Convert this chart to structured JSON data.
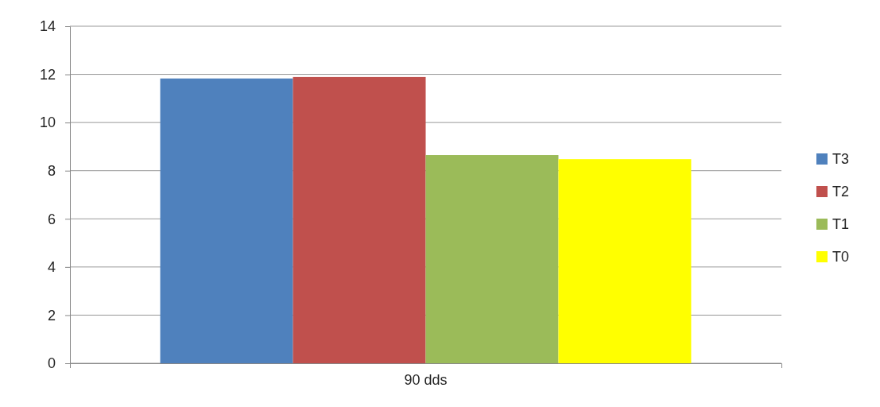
{
  "chart_data": {
    "type": "bar",
    "categories": [
      "90 dds"
    ],
    "series": [
      {
        "name": "T3",
        "color": "#4f81bd",
        "values": [
          11.83
        ]
      },
      {
        "name": "T2",
        "color": "#c0504d",
        "values": [
          11.89
        ]
      },
      {
        "name": "T1",
        "color": "#9bbb59",
        "values": [
          8.65
        ]
      },
      {
        "name": "T0",
        "color": "#ffff00",
        "values": [
          8.48
        ]
      }
    ],
    "ylim": [
      0,
      14
    ],
    "yticks": [
      0,
      2,
      4,
      6,
      8,
      10,
      12,
      14
    ],
    "grid": "y",
    "legend": "right"
  }
}
